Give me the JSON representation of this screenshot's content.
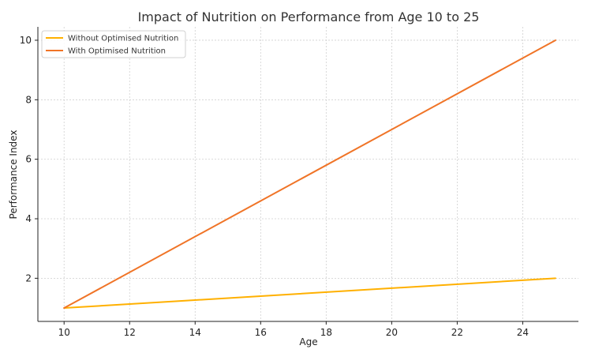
{
  "chart_data": {
    "type": "line",
    "title": "Impact of Nutrition on Performance from Age 10 to 25",
    "xlabel": "Age",
    "ylabel": "Performance Index",
    "xlim": [
      9.2,
      25.7
    ],
    "ylim": [
      0.55,
      10.45
    ],
    "xticks": [
      10,
      12,
      14,
      16,
      18,
      20,
      22,
      24
    ],
    "yticks": [
      2,
      4,
      6,
      8,
      10
    ],
    "grid": true,
    "legend_position": "top-left",
    "x": [
      10,
      25
    ],
    "series": [
      {
        "name": "Without Optimised Nutrition",
        "color": "#FFB000",
        "values": [
          1,
          2
        ]
      },
      {
        "name": "With Optimised Nutrition",
        "color": "#F07427",
        "values": [
          1,
          10
        ]
      }
    ]
  }
}
